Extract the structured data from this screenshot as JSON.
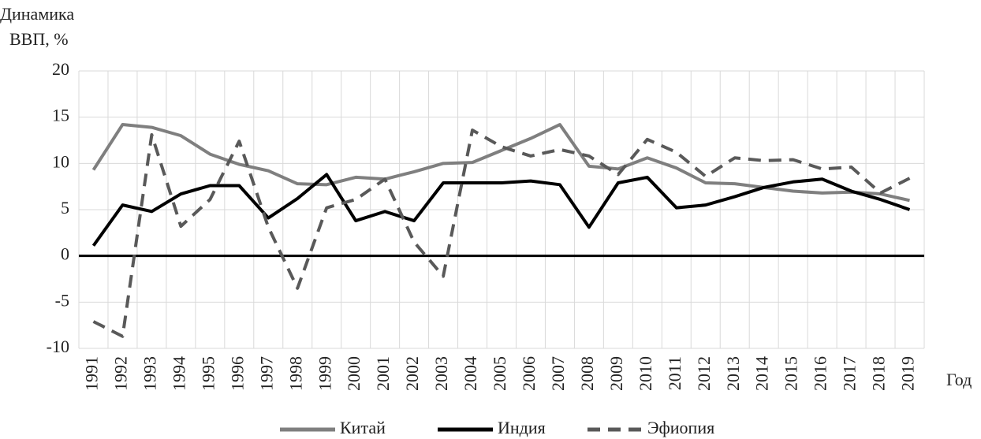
{
  "chart_data": {
    "type": "line",
    "y_label_lines": [
      "Динамика",
      "ВВП, %"
    ],
    "x_label": "Год",
    "categories": [
      "1991",
      "1992",
      "1993",
      "1994",
      "1995",
      "1996",
      "1997",
      "1998",
      "1999",
      "2000",
      "2001",
      "2002",
      "2003",
      "2004",
      "2005",
      "2006",
      "2007",
      "2008",
      "2009",
      "2010",
      "2011",
      "2012",
      "2013",
      "2014",
      "2015",
      "2016",
      "2017",
      "2018",
      "2019"
    ],
    "series": [
      {
        "name": "Китай",
        "color": "#7f7f7f",
        "line_style": "solid",
        "values": [
          9.3,
          14.2,
          13.9,
          13.0,
          11.0,
          9.9,
          9.2,
          7.8,
          7.7,
          8.5,
          8.3,
          9.1,
          10.0,
          10.1,
          11.4,
          12.7,
          14.2,
          9.7,
          9.4,
          10.6,
          9.5,
          7.9,
          7.8,
          7.4,
          7.0,
          6.8,
          6.9,
          6.7,
          6.0
        ]
      },
      {
        "name": "Индия",
        "color": "#000000",
        "line_style": "solid",
        "values": [
          1.1,
          5.5,
          4.8,
          6.7,
          7.6,
          7.6,
          4.1,
          6.2,
          8.8,
          3.8,
          4.8,
          3.8,
          7.9,
          7.9,
          7.9,
          8.1,
          7.7,
          3.1,
          7.9,
          8.5,
          5.2,
          5.5,
          6.4,
          7.4,
          8.0,
          8.3,
          7.0,
          6.1,
          5.0
        ]
      },
      {
        "name": "Эфиопия",
        "color": "#595959",
        "line_style": "dashed",
        "values": [
          -7.1,
          -8.7,
          13.1,
          3.2,
          6.1,
          12.4,
          3.1,
          -3.5,
          5.2,
          6.1,
          8.3,
          1.5,
          -2.2,
          13.6,
          11.8,
          10.8,
          11.5,
          10.8,
          8.8,
          12.6,
          11.2,
          8.6,
          10.6,
          10.3,
          10.4,
          9.4,
          9.6,
          6.8,
          8.4
        ]
      }
    ],
    "ylim": [
      -10,
      20
    ],
    "yticks": [
      -10,
      -5,
      0,
      5,
      10,
      15,
      20
    ],
    "grid": true,
    "legend": "bottom"
  }
}
